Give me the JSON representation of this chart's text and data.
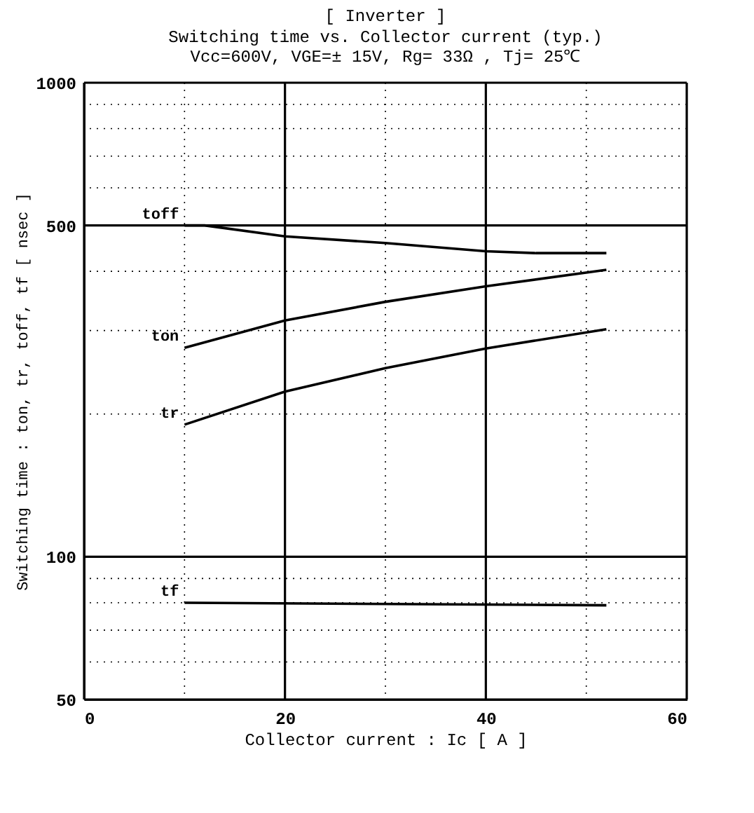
{
  "chart_data": {
    "type": "line",
    "title": "[ Inverter ]",
    "subtitle": [
      "Switching time  vs.  Collector current  (typ.)",
      "Vcc=600V, VGE=± 15V, Rg= 33Ω , Tj= 25℃"
    ],
    "xlabel": "Collector current  :  Ic  [ A ]",
    "ylabel": "Switching time  :  ton, tr, toff, tf  [ nsec ]",
    "log": "y",
    "grid": true,
    "legend": false,
    "marker": "none",
    "line_style": "solid",
    "xlim": [
      0,
      60
    ],
    "xticks": [
      0,
      {
        "value": 10,
        "label": null
      },
      20,
      {
        "value": 30,
        "label": null
      },
      40,
      {
        "value": 50,
        "label": null
      },
      60
    ],
    "ylim": [
      50,
      1000
    ],
    "yticks": [
      50,
      {
        "value": 60,
        "label": null
      },
      {
        "value": 70,
        "label": null
      },
      {
        "value": 80,
        "label": null
      },
      {
        "value": 90,
        "label": null
      },
      100,
      {
        "value": 200,
        "label": null
      },
      {
        "value": 300,
        "label": null
      },
      {
        "value": 400,
        "label": null
      },
      500,
      {
        "value": 600,
        "label": null
      },
      {
        "value": 700,
        "label": null
      },
      {
        "value": 800,
        "label": null
      },
      {
        "value": 900,
        "label": null
      },
      1000
    ],
    "series": [
      {
        "name": "toff",
        "color": "#000000",
        "x": [
          10,
          12,
          20,
          30,
          40,
          45,
          52
        ],
        "values": [
          500,
          500,
          474,
          459,
          441,
          437,
          437
        ]
      },
      {
        "name": "ton",
        "color": "#000000",
        "x": [
          10,
          20,
          30,
          40,
          52
        ],
        "values": [
          276,
          315,
          345,
          372,
          403
        ]
      },
      {
        "name": "tr",
        "color": "#000000",
        "x": [
          10,
          20,
          30,
          40,
          52
        ],
        "values": [
          190,
          223,
          250,
          275,
          302
        ]
      },
      {
        "name": "tf",
        "color": "#000000",
        "x": [
          10,
          52
        ],
        "values": [
          80,
          79
        ]
      }
    ]
  }
}
